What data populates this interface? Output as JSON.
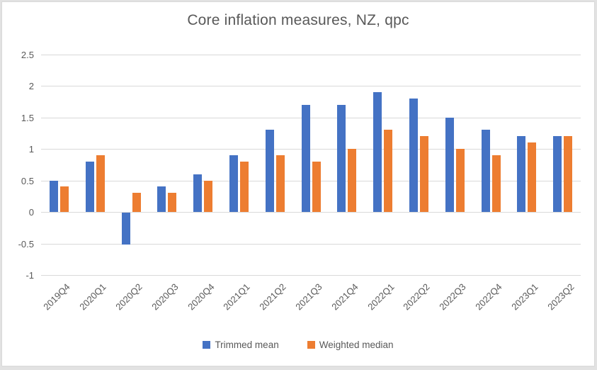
{
  "chart_data": {
    "type": "bar",
    "title": "Core inflation measures, NZ, qpc",
    "categories": [
      "2019Q4",
      "2020Q1",
      "2020Q2",
      "2020Q3",
      "2020Q4",
      "2021Q1",
      "2021Q2",
      "2021Q3",
      "2021Q4",
      "2022Q1",
      "2022Q2",
      "2022Q3",
      "2022Q4",
      "2023Q1",
      "2023Q2"
    ],
    "series": [
      {
        "name": "Trimmed mean",
        "color": "#4472C4",
        "values": [
          0.5,
          0.8,
          -0.5,
          0.4,
          0.6,
          0.9,
          1.3,
          1.7,
          1.7,
          1.9,
          1.8,
          1.5,
          1.3,
          1.2,
          1.2
        ]
      },
      {
        "name": "Weighted median",
        "color": "#ED7D31",
        "values": [
          0.4,
          0.9,
          0.3,
          0.3,
          0.5,
          0.8,
          0.9,
          0.8,
          1.0,
          1.3,
          1.2,
          1.0,
          0.9,
          1.1,
          1.2
        ]
      }
    ],
    "ylim": [
      -1,
      2.5
    ],
    "ytick_step": 0.5,
    "yticks": [
      "2.5",
      "2",
      "1.5",
      "1",
      "0.5",
      "0",
      "-0.5",
      "-1"
    ],
    "xlabel": "",
    "ylabel": "",
    "grid": true,
    "legend_position": "bottom",
    "colors": {
      "text": "#595959",
      "gridline": "#D9D9D9",
      "plot_background": "#FFFFFF",
      "frame_background": "#E2E2E2"
    }
  }
}
